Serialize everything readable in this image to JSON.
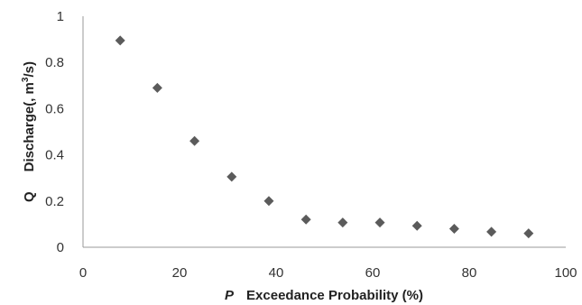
{
  "chart_data": {
    "type": "scatter",
    "title": "",
    "xlabel": {
      "symbol": "P",
      "text": "Exceedance Probability (%)"
    },
    "ylabel": {
      "symbol": "Q",
      "prefix": "Discharge(",
      "comma": ",",
      "unit_base": " m",
      "unit_exp": "3",
      "unit_tail": "/s)"
    },
    "xlim": [
      0,
      100
    ],
    "ylim": [
      0,
      1
    ],
    "xticks": [
      "0",
      "20",
      "40",
      "60",
      "80",
      "100"
    ],
    "yticks": [
      "0",
      "0.2",
      "0.4",
      "0.6",
      "0.8",
      "1"
    ],
    "marker": "diamond",
    "marker_color": "#5b5b5b",
    "grid": false,
    "points": [
      {
        "x": 7.7,
        "y": 0.895
      },
      {
        "x": 15.4,
        "y": 0.69
      },
      {
        "x": 23.1,
        "y": 0.46
      },
      {
        "x": 30.8,
        "y": 0.305
      },
      {
        "x": 38.5,
        "y": 0.2
      },
      {
        "x": 46.2,
        "y": 0.12
      },
      {
        "x": 53.8,
        "y": 0.107
      },
      {
        "x": 61.5,
        "y": 0.107
      },
      {
        "x": 69.2,
        "y": 0.093
      },
      {
        "x": 76.9,
        "y": 0.08
      },
      {
        "x": 84.6,
        "y": 0.067
      },
      {
        "x": 92.3,
        "y": 0.06
      }
    ]
  }
}
